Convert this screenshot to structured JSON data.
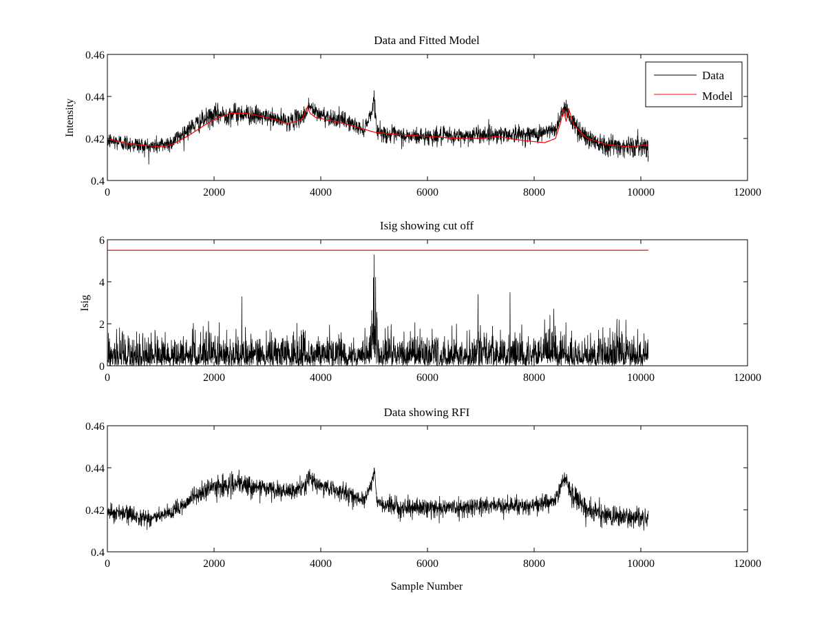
{
  "chart_data": [
    {
      "type": "line",
      "title": "Data and Fitted Model",
      "xlabel": "",
      "ylabel": "Intensity",
      "xlim": [
        0,
        12000
      ],
      "ylim": [
        0.4,
        0.46
      ],
      "xticks": [
        0,
        2000,
        4000,
        6000,
        8000,
        10000,
        12000
      ],
      "xtick_labels": [
        "0",
        "2000",
        "4000",
        "6000",
        "8000",
        "10000",
        "12000"
      ],
      "yticks": [
        0.4,
        0.42,
        0.44,
        0.46
      ],
      "ytick_labels": [
        "0.4",
        "0.42",
        "0.44",
        "0.46"
      ],
      "legend": {
        "placement": "top-right",
        "entries": [
          "Data",
          "Model"
        ]
      },
      "grid": false,
      "series": [
        {
          "name": "Data",
          "color": "#000000",
          "style": "noisy",
          "x": [
            0,
            300,
            800,
            1200,
            1600,
            2000,
            2500,
            3000,
            3400,
            3700,
            3780,
            3900,
            4200,
            4500,
            4800,
            4960,
            5000,
            5050,
            5200,
            5600,
            6000,
            6600,
            7000,
            7400,
            8000,
            8400,
            8520,
            8600,
            8700,
            9000,
            9400,
            9800,
            10140
          ],
          "center": [
            0.419,
            0.418,
            0.416,
            0.418,
            0.426,
            0.431,
            0.432,
            0.43,
            0.428,
            0.431,
            0.436,
            0.432,
            0.43,
            0.428,
            0.424,
            0.433,
            0.44,
            0.424,
            0.422,
            0.421,
            0.421,
            0.421,
            0.422,
            0.422,
            0.422,
            0.424,
            0.433,
            0.435,
            0.428,
            0.42,
            0.417,
            0.416,
            0.417
          ],
          "amplitude": [
            0.005,
            0.005,
            0.005,
            0.005,
            0.005,
            0.006,
            0.006,
            0.005,
            0.005,
            0.005,
            0.005,
            0.005,
            0.005,
            0.005,
            0.004,
            0.004,
            0.004,
            0.004,
            0.005,
            0.005,
            0.005,
            0.005,
            0.005,
            0.005,
            0.005,
            0.005,
            0.005,
            0.005,
            0.006,
            0.006,
            0.006,
            0.006,
            0.006
          ]
        },
        {
          "name": "Model",
          "color": "#ff0000",
          "style": "line",
          "x": [
            0,
            300,
            600,
            1000,
            1200,
            1500,
            1800,
            2000,
            2300,
            2600,
            3000,
            3400,
            3650,
            3750,
            3800,
            3900,
            4100,
            4300,
            4600,
            5000,
            5400,
            6000,
            6600,
            7000,
            7300,
            7800,
            8200,
            8400,
            8500,
            8550,
            8600,
            8650,
            8750,
            9000,
            9400,
            9800,
            10140
          ],
          "y": [
            0.42,
            0.418,
            0.417,
            0.416,
            0.417,
            0.421,
            0.426,
            0.429,
            0.432,
            0.432,
            0.43,
            0.427,
            0.429,
            0.435,
            0.432,
            0.43,
            0.429,
            0.428,
            0.426,
            0.423,
            0.422,
            0.421,
            0.42,
            0.42,
            0.421,
            0.419,
            0.418,
            0.42,
            0.428,
            0.434,
            0.428,
            0.434,
            0.426,
            0.42,
            0.417,
            0.416,
            0.417
          ]
        }
      ]
    },
    {
      "type": "line",
      "title": "Isig showing cut off",
      "xlabel": "",
      "ylabel": "Isig",
      "xlim": [
        0,
        12000
      ],
      "ylim": [
        0,
        6
      ],
      "xticks": [
        0,
        2000,
        4000,
        6000,
        8000,
        10000,
        12000
      ],
      "xtick_labels": [
        "0",
        "2000",
        "4000",
        "6000",
        "8000",
        "10000",
        "12000"
      ],
      "yticks": [
        0,
        2,
        4,
        6
      ],
      "ytick_labels": [
        "0",
        "2",
        "4",
        "6"
      ],
      "grid": false,
      "series": [
        {
          "color": "#000000",
          "style": "abs-noise",
          "x": [
            0,
            1000,
            2000,
            3000,
            4000,
            4900,
            4960,
            5000,
            5040,
            5100,
            6000,
            7000,
            8000,
            9000,
            10140
          ],
          "scale": [
            0.8,
            0.8,
            0.85,
            0.8,
            0.8,
            0.8,
            1.6,
            2.6,
            1.6,
            0.8,
            0.85,
            0.85,
            0.9,
            0.85,
            0.85
          ],
          "spikes": [
            {
              "x": 5000,
              "y": 5.3
            },
            {
              "x": 4990,
              "y": 4.2
            },
            {
              "x": 7550,
              "y": 3.5
            },
            {
              "x": 2520,
              "y": 3.3
            },
            {
              "x": 6950,
              "y": 3.4
            }
          ]
        },
        {
          "color": "#ff0000",
          "style": "line",
          "x": [
            0,
            10140
          ],
          "y": [
            5.5,
            5.5
          ]
        }
      ]
    },
    {
      "type": "line",
      "title": "Data showing RFI",
      "xlabel": "Sample Number",
      "ylabel": "",
      "xlim": [
        0,
        12000
      ],
      "ylim": [
        0.4,
        0.46
      ],
      "xticks": [
        0,
        2000,
        4000,
        6000,
        8000,
        10000,
        12000
      ],
      "xtick_labels": [
        "0",
        "2000",
        "4000",
        "6000",
        "8000",
        "10000",
        "12000"
      ],
      "yticks": [
        0.4,
        0.42,
        0.44,
        0.46
      ],
      "ytick_labels": [
        "0.4",
        "0.42",
        "0.44",
        "0.46"
      ],
      "grid": false,
      "series": [
        {
          "color": "#000000",
          "style": "noisy",
          "x": [
            0,
            300,
            800,
            1200,
            1600,
            2000,
            2500,
            3000,
            3400,
            3700,
            3780,
            3900,
            4200,
            4500,
            4800,
            4960,
            5000,
            5050,
            5200,
            5600,
            6000,
            6600,
            7000,
            7400,
            8000,
            8400,
            8520,
            8600,
            8700,
            9000,
            9400,
            9800,
            10140
          ],
          "center": [
            0.419,
            0.418,
            0.416,
            0.418,
            0.426,
            0.431,
            0.432,
            0.43,
            0.428,
            0.431,
            0.436,
            0.432,
            0.43,
            0.428,
            0.424,
            0.433,
            0.44,
            0.424,
            0.422,
            0.421,
            0.421,
            0.421,
            0.422,
            0.422,
            0.422,
            0.424,
            0.433,
            0.435,
            0.428,
            0.42,
            0.417,
            0.416,
            0.417
          ],
          "amplitude": [
            0.005,
            0.005,
            0.005,
            0.005,
            0.005,
            0.006,
            0.006,
            0.005,
            0.005,
            0.005,
            0.005,
            0.005,
            0.005,
            0.005,
            0.004,
            0.004,
            0.004,
            0.004,
            0.005,
            0.005,
            0.005,
            0.005,
            0.005,
            0.005,
            0.005,
            0.005,
            0.005,
            0.005,
            0.006,
            0.006,
            0.006,
            0.006,
            0.006
          ]
        }
      ]
    }
  ]
}
